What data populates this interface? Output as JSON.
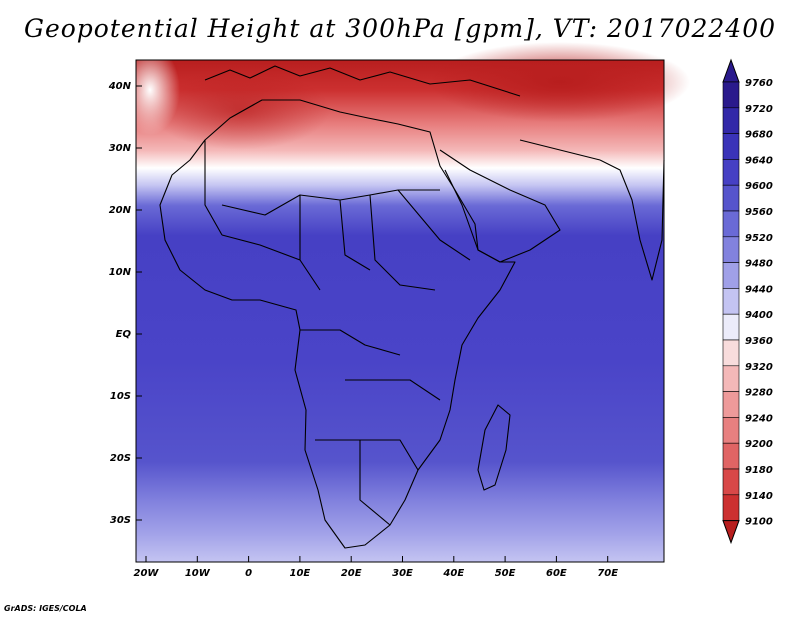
{
  "title": "Geopotential Height at 300hPa [gpm], VT: 2017022400",
  "credit": "GrADS: IGES/COLA",
  "map": {
    "lat_labels": [
      "40N",
      "30N",
      "20N",
      "10N",
      "EQ",
      "10S",
      "20S",
      "30S"
    ],
    "lon_labels": [
      "20W",
      "10W",
      "0",
      "10E",
      "20E",
      "30E",
      "40E",
      "50E",
      "60E",
      "70E"
    ]
  },
  "colorbar": {
    "levels": [
      "9760",
      "9720",
      "9680",
      "9640",
      "9600",
      "9560",
      "9520",
      "9480",
      "9440",
      "9400",
      "9360",
      "9320",
      "9280",
      "9240",
      "9200",
      "9180",
      "9140",
      "9100"
    ],
    "colors": [
      "#2a1a8c",
      "#3228a8",
      "#3a33b8",
      "#4640c4",
      "#5654cc",
      "#6a6ad6",
      "#8282de",
      "#a0a0e8",
      "#c4c4f2",
      "#ececfa",
      "#f8dcdc",
      "#f4b8b8",
      "#ee9a9a",
      "#e88080",
      "#e06464",
      "#d84848",
      "#cc3030",
      "#b81e1e"
    ]
  }
}
